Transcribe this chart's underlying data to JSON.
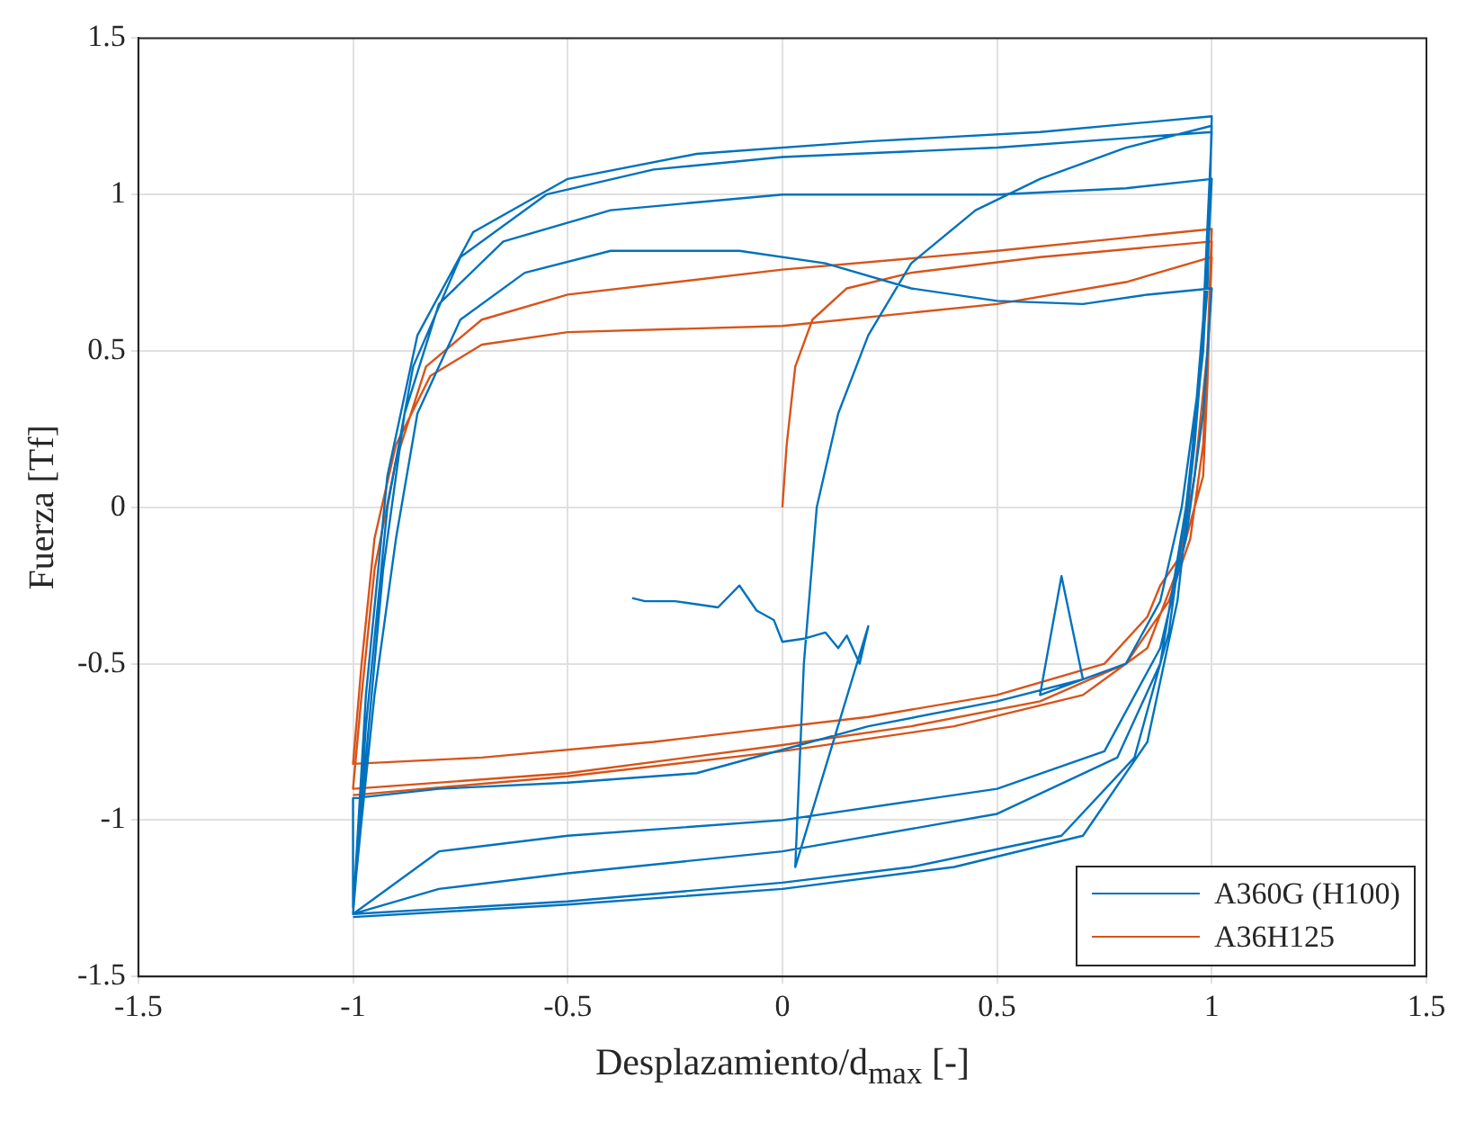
{
  "chart_data": {
    "type": "line",
    "xlabel": "Desplazamiento/d$_{max}$ [-]",
    "ylabel": "Fuerza [Tf]",
    "xlim": [
      -1.5,
      1.5
    ],
    "ylim": [
      -1.5,
      1.5
    ],
    "xticks": [
      -1.5,
      -1,
      -0.5,
      0,
      0.5,
      1,
      1.5
    ],
    "yticks": [
      -1.5,
      -1,
      -0.5,
      0,
      0.5,
      1,
      1.5
    ],
    "grid": true,
    "legend": "bottom right",
    "marker": "none",
    "series": [
      {
        "name": "A360G (H100)",
        "color": "#0072bd",
        "x": [
          -0.35,
          -0.32,
          -0.25,
          -0.2,
          -0.15,
          -0.1,
          -0.06,
          -0.02,
          0,
          0.05,
          0.1,
          0.13,
          0.15,
          0.18,
          0.2,
          0.03,
          0.05,
          0.08,
          0.13,
          0.2,
          0.3,
          0.45,
          0.6,
          0.8,
          1,
          0.99,
          0.97,
          0.93,
          0.88,
          0.8,
          0.6,
          0.65,
          0.7,
          0.5,
          0.2,
          -0.2,
          -0.5,
          -0.8,
          -1,
          -1,
          -0.98,
          -0.95,
          -0.9,
          -0.85,
          -0.75,
          -0.6,
          -0.4,
          -0.1,
          0.1,
          0.3,
          0.5,
          0.7,
          0.85,
          1,
          0.98,
          0.94,
          0.88,
          0.75,
          0.5,
          0,
          -0.5,
          -0.8,
          -1,
          -0.97,
          -0.93,
          -0.88,
          -0.8,
          -0.65,
          -0.4,
          0,
          0.5,
          0.8,
          1,
          0.98,
          0.94,
          0.88,
          0.78,
          0.5,
          0,
          -0.5,
          -0.8,
          -1,
          -0.97,
          -0.92,
          -0.86,
          -0.75,
          -0.55,
          -0.3,
          0,
          0.5,
          1,
          0.98,
          0.95,
          0.9,
          0.82,
          0.65,
          0.3,
          0,
          -0.5,
          -1,
          -0.97,
          -0.92,
          -0.85,
          -0.72,
          -0.5,
          -0.2,
          0.2,
          0.6,
          1,
          0.99,
          0.96,
          0.92,
          0.85,
          0.7,
          0.4,
          0,
          -0.5,
          -1
        ],
        "values": [
          -0.29,
          -0.3,
          -0.3,
          -0.31,
          -0.32,
          -0.25,
          -0.33,
          -0.36,
          -0.43,
          -0.42,
          -0.4,
          -0.45,
          -0.41,
          -0.5,
          -0.38,
          -1.15,
          -0.5,
          0,
          0.3,
          0.55,
          0.78,
          0.95,
          1.05,
          1.15,
          1.22,
          0.8,
          0.4,
          0,
          -0.3,
          -0.5,
          -0.6,
          -0.22,
          -0.55,
          -0.62,
          -0.7,
          -0.85,
          -0.88,
          -0.9,
          -0.93,
          -1.28,
          -1,
          -0.6,
          -0.1,
          0.3,
          0.6,
          0.75,
          0.82,
          0.82,
          0.78,
          0.7,
          0.66,
          0.65,
          0.68,
          0.7,
          0.3,
          -0.1,
          -0.45,
          -0.78,
          -0.9,
          -1,
          -1.05,
          -1.1,
          -1.3,
          -0.8,
          -0.2,
          0.3,
          0.65,
          0.85,
          0.95,
          1,
          1,
          1.02,
          1.05,
          0.5,
          0,
          -0.5,
          -0.8,
          -0.98,
          -1.1,
          -1.17,
          -1.22,
          -1.3,
          -0.7,
          0,
          0.45,
          0.8,
          1,
          1.08,
          1.12,
          1.15,
          1.2,
          0.6,
          0.1,
          -0.4,
          -0.8,
          -1.05,
          -1.15,
          -1.2,
          -1.26,
          -1.3,
          -0.6,
          0.1,
          0.55,
          0.88,
          1.05,
          1.13,
          1.17,
          1.2,
          1.25,
          0.7,
          0.2,
          -0.3,
          -0.75,
          -1.05,
          -1.15,
          -1.22,
          -1.27,
          -1.31
        ]
      },
      {
        "name": "A36H125",
        "color": "#d95319",
        "x": [
          0,
          0.01,
          0.03,
          0.07,
          0.15,
          0.3,
          0.6,
          1,
          0.99,
          0.98,
          0.93,
          0.88,
          0.85,
          0.75,
          0.5,
          0.2,
          -0.3,
          -0.7,
          -1,
          -0.98,
          -0.95,
          -0.9,
          -0.82,
          -0.7,
          -0.5,
          0,
          0.5,
          0.8,
          1,
          0.98,
          0.95,
          0.9,
          0.8,
          0.6,
          0.3,
          0,
          -0.5,
          -1,
          -0.98,
          -0.95,
          -0.9,
          -0.83,
          -0.7,
          -0.5,
          0,
          0.5,
          1,
          0.99,
          0.96,
          0.92,
          0.85,
          0.7,
          0.4,
          0,
          -0.5,
          -1
        ],
        "values": [
          0,
          0.2,
          0.45,
          0.6,
          0.7,
          0.75,
          0.8,
          0.85,
          0.4,
          0.1,
          -0.15,
          -0.25,
          -0.35,
          -0.5,
          -0.6,
          -0.67,
          -0.75,
          -0.8,
          -0.82,
          -0.5,
          -0.1,
          0.2,
          0.42,
          0.52,
          0.56,
          0.58,
          0.65,
          0.72,
          0.8,
          0.2,
          -0.1,
          -0.3,
          -0.5,
          -0.62,
          -0.7,
          -0.76,
          -0.85,
          -0.9,
          -0.6,
          -0.2,
          0.15,
          0.45,
          0.6,
          0.68,
          0.76,
          0.82,
          0.89,
          0.5,
          0.1,
          -0.2,
          -0.45,
          -0.6,
          -0.7,
          -0.78,
          -0.86,
          -0.92
        ]
      }
    ]
  }
}
